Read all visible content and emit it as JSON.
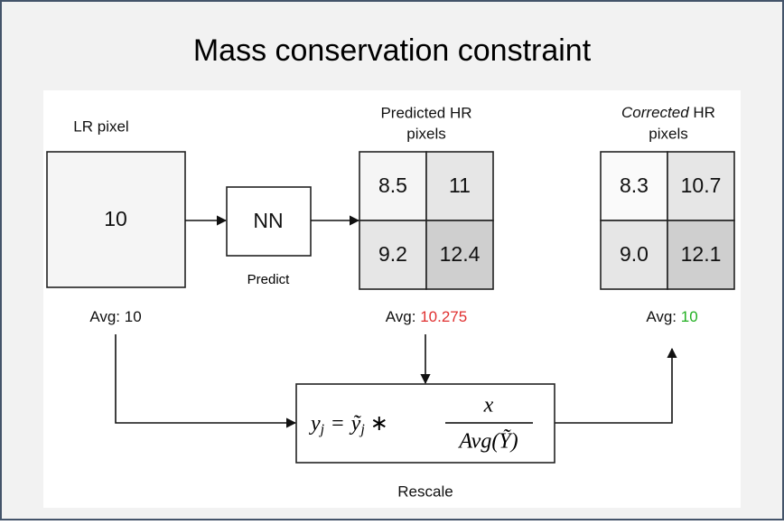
{
  "title": "Mass conservation constraint",
  "lr": {
    "label": "LR pixel",
    "value": "10",
    "avg_label": "Avg:",
    "avg_value": "10"
  },
  "nn": {
    "label": "NN",
    "caption": "Predict"
  },
  "predicted": {
    "label_line1": "Predicted HR",
    "label_line2": "pixels",
    "cells": [
      [
        "8.5",
        "11"
      ],
      [
        "9.2",
        "12.4"
      ]
    ],
    "avg_label": "Avg:",
    "avg_value": "10.275"
  },
  "corrected": {
    "label_italic": "Corrected",
    "label_rest": " HR",
    "label_line2": "pixels",
    "cells": [
      [
        "8.3",
        "10.7"
      ],
      [
        "9.0",
        "12.1"
      ]
    ],
    "avg_label": "Avg:",
    "avg_value": "10"
  },
  "formula": {
    "lhs": "y",
    "lhs_sub": "j",
    "equals": "=",
    "term": "ỹ",
    "term_sub": "j",
    "times": "∗",
    "numerator": "x",
    "denominator": "Avg(Ỹ)",
    "caption": "Rescale"
  }
}
